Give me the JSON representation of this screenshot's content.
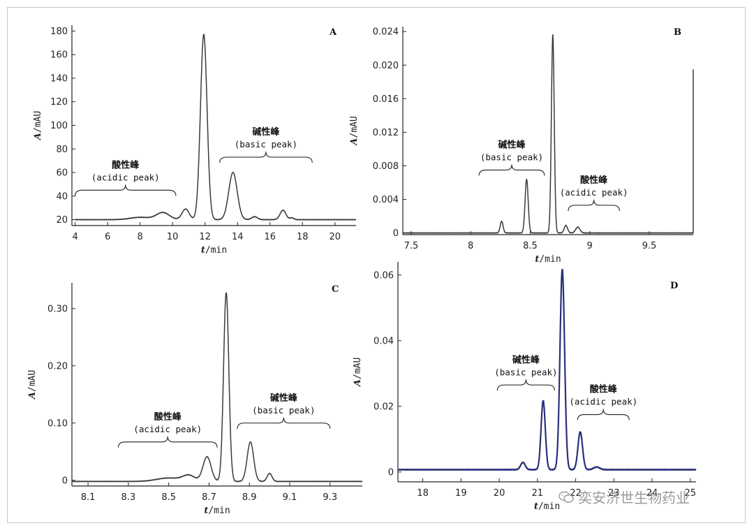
{
  "figure": {
    "watermark": "奕安济世生物药业",
    "colors": {
      "trace_gray": "#3a3a3a",
      "trace_blue": "#2a2f7a",
      "axis": "#222222"
    }
  },
  "chart_data": [
    {
      "type": "line",
      "panel_label": "A",
      "xlabel_italic": "t",
      "xlabel_rest": "/min",
      "ylabel_italic": "A",
      "ylabel_rest": "/mAU",
      "xlim": [
        3.8,
        21.3
      ],
      "ylim": [
        15,
        185
      ],
      "xticks": [
        4,
        6,
        8,
        10,
        12,
        14,
        16,
        18,
        20
      ],
      "xtick_labels": [
        "4",
        "6",
        "8",
        "10",
        "12",
        "14",
        "16",
        "18",
        "20"
      ],
      "yticks": [
        20,
        40,
        60,
        80,
        100,
        120,
        140,
        160,
        180
      ],
      "ytick_labels": [
        "20",
        "40",
        "60",
        "80",
        "100",
        "120",
        "140",
        "160",
        "180"
      ],
      "baseline": 20,
      "x_range": [
        4.0,
        21.3
      ],
      "trace_color": "#3a3a3a",
      "peaks": [
        {
          "x": 8.0,
          "h": 2,
          "w": 0.6
        },
        {
          "x": 9.4,
          "h": 6,
          "w": 0.4
        },
        {
          "x": 10.8,
          "h": 9,
          "w": 0.22
        },
        {
          "x": 11.75,
          "h": 10,
          "w": 0.18
        },
        {
          "x": 11.93,
          "h": 151,
          "w": 0.2
        },
        {
          "x": 13.72,
          "h": 40,
          "w": 0.26
        },
        {
          "x": 15.05,
          "h": 2.5,
          "w": 0.18
        },
        {
          "x": 16.8,
          "h": 8,
          "w": 0.18
        },
        {
          "x": 17.35,
          "h": 1.5,
          "w": 0.12
        }
      ],
      "annotations": [
        {
          "cn": "酸性峰",
          "en": "(acidic peak)",
          "x0": 4.0,
          "x1": 10.2,
          "y": 45
        },
        {
          "cn": "碱性峰",
          "en": "(basic peak)",
          "x0": 12.9,
          "x1": 18.6,
          "y": 73
        }
      ]
    },
    {
      "type": "line",
      "panel_label": "B",
      "xlabel_italic": "t",
      "xlabel_rest": "/min",
      "ylabel_italic": "A",
      "ylabel_rest": "/mAU",
      "xlim": [
        7.43,
        9.87
      ],
      "ylim": [
        -0.0002,
        0.0246
      ],
      "xticks": [
        7.5,
        8.0,
        8.5,
        9.0,
        9.5
      ],
      "xtick_labels": [
        "7.5",
        "8",
        "8.5",
        "9",
        "9.5"
      ],
      "yticks": [
        0,
        0.004,
        0.008,
        0.012,
        0.016,
        0.02,
        0.024
      ],
      "ytick_labels": [
        "0",
        "0.004",
        "0.008",
        "0.012",
        "0.016",
        "0.020",
        "0.024"
      ],
      "baseline": 0,
      "x_range": [
        7.43,
        9.87
      ],
      "trace_color": "#3a3a3a",
      "peaks": [
        {
          "x": 8.26,
          "h": 0.0014,
          "w": 0.012
        },
        {
          "x": 8.47,
          "h": 0.0064,
          "w": 0.013
        },
        {
          "x": 8.69,
          "h": 0.0236,
          "w": 0.012
        },
        {
          "x": 8.8,
          "h": 0.0009,
          "w": 0.014
        },
        {
          "x": 8.9,
          "h": 0.0007,
          "w": 0.018
        }
      ],
      "end_spike": 0.0195,
      "annotations": [
        {
          "cn": "碱性峰",
          "en": "(basic peak)",
          "x0": 8.07,
          "x1": 8.62,
          "y": 0.0075
        },
        {
          "cn": "酸性峰",
          "en": "(acidic peak)",
          "x0": 8.82,
          "x1": 9.25,
          "y": 0.0033
        }
      ]
    },
    {
      "type": "line",
      "panel_label": "C",
      "xlabel_italic": "t",
      "xlabel_rest": "/min",
      "ylabel_italic": "A",
      "ylabel_rest": "/mAU",
      "xlim": [
        8.02,
        9.46
      ],
      "ylim": [
        -0.01,
        0.345
      ],
      "xticks": [
        8.1,
        8.3,
        8.5,
        8.7,
        8.9,
        9.1,
        9.3
      ],
      "xtick_labels": [
        "8.1",
        "8.3",
        "8.5",
        "8.7",
        "8.9",
        "9.1",
        "9.3"
      ],
      "yticks": [
        0,
        0.1,
        0.2,
        0.3
      ],
      "ytick_labels": [
        "0",
        "0.10",
        "0.20",
        "0.30"
      ],
      "baseline": -0.002,
      "x_range": [
        8.02,
        9.46
      ],
      "trace_color": "#3a3a3a",
      "peaks": [
        {
          "x": 8.5,
          "h": 0.006,
          "w": 0.06
        },
        {
          "x": 8.6,
          "h": 0.01,
          "w": 0.03
        },
        {
          "x": 8.69,
          "h": 0.043,
          "w": 0.02
        },
        {
          "x": 8.785,
          "h": 0.33,
          "w": 0.013
        },
        {
          "x": 8.905,
          "h": 0.069,
          "w": 0.016
        },
        {
          "x": 9.0,
          "h": 0.014,
          "w": 0.012
        }
      ],
      "annotations": [
        {
          "cn": "酸性峰",
          "en": "(acidic peak)",
          "x0": 8.25,
          "x1": 8.74,
          "y": 0.067
        },
        {
          "cn": "碱性峰",
          "en": "(basic peak)",
          "x0": 8.84,
          "x1": 9.3,
          "y": 0.1
        }
      ]
    },
    {
      "type": "line",
      "panel_label": "D",
      "xlabel_italic": "t",
      "xlabel_rest": "/min",
      "ylabel_italic": "A",
      "ylabel_rest": "/mAU",
      "xlim": [
        17.35,
        25.15
      ],
      "ylim": [
        -0.003,
        0.064
      ],
      "xticks": [
        18,
        19,
        20,
        21,
        22,
        23,
        24,
        25
      ],
      "xtick_labels": [
        "18",
        "19",
        "20",
        "21",
        "22",
        "23",
        "24",
        "25"
      ],
      "yticks": [
        0,
        0.02,
        0.04,
        0.06
      ],
      "ytick_labels": [
        "0",
        "0.02",
        "0.04",
        "0.06"
      ],
      "baseline": 0.0007,
      "x_range": [
        17.35,
        25.15
      ],
      "trace_color": "#2a2f7a",
      "peaks": [
        {
          "x": 20.62,
          "h": 0.0022,
          "w": 0.06
        },
        {
          "x": 21.15,
          "h": 0.021,
          "w": 0.055
        },
        {
          "x": 21.65,
          "h": 0.061,
          "w": 0.06
        },
        {
          "x": 22.12,
          "h": 0.0115,
          "w": 0.06
        },
        {
          "x": 22.55,
          "h": 0.0008,
          "w": 0.08
        }
      ],
      "annotations": [
        {
          "cn": "碱性峰",
          "en": "(basic peak)",
          "x0": 19.95,
          "x1": 21.45,
          "y": 0.0265
        },
        {
          "cn": "酸性峰",
          "en": "(acidic peak)",
          "x0": 22.05,
          "x1": 23.4,
          "y": 0.0175
        }
      ]
    }
  ]
}
